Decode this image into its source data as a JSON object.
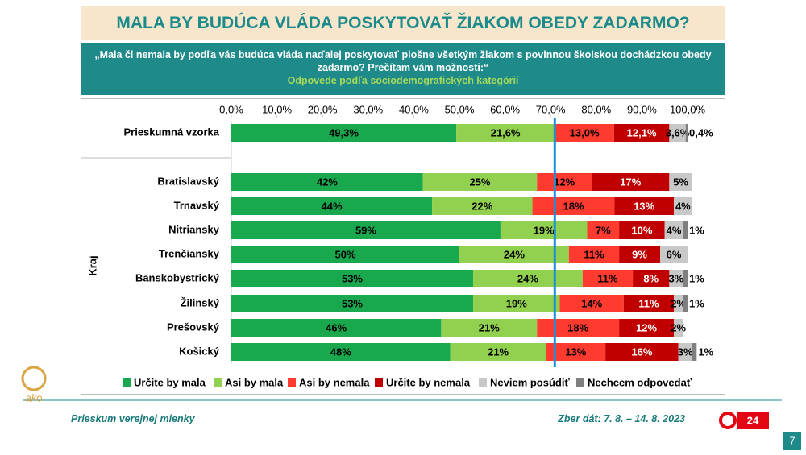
{
  "header": {
    "title": "MALA BY BUDÚCA VLÁDA POSKYTOVAŤ ŽIAKOM OBEDY ZADARMO?",
    "question": "„Mala či nemala by podľa vás budúca vláda naďalej poskytovať plošne všetkým žiakom s povinnou školskou dochádzkou obedy zadarmo? Prečítam vám možnosti:“",
    "subtitle": "Odpovede podľa sociodemografických kategórií"
  },
  "chart_data": {
    "type": "stacked_bar_horizontal",
    "group_label": "Kraj",
    "categories": [
      "Prieskumná vzorka",
      "Bratislavský",
      "Trnavský",
      "Nitriansky",
      "Trenčiansky",
      "Banskobystrický",
      "Žilinský",
      "Prešovský",
      "Košický"
    ],
    "series": [
      {
        "name": "Určite by mala",
        "color": "#1aa84f",
        "label_color": "#000000",
        "values": [
          49.3,
          42,
          44,
          59,
          50,
          53,
          53,
          46,
          48
        ],
        "value_labels": [
          "49,3%",
          "42%",
          "44%",
          "59%",
          "50%",
          "53%",
          "53%",
          "46%",
          "48%"
        ]
      },
      {
        "name": "Asi by mala",
        "color": "#92d050",
        "label_color": "#000000",
        "values": [
          21.6,
          25,
          22,
          19,
          24,
          24,
          19,
          21,
          21
        ],
        "value_labels": [
          "21,6%",
          "25%",
          "22%",
          "19%",
          "24%",
          "24%",
          "19%",
          "21%",
          "21%"
        ]
      },
      {
        "name": "Asi by nemala",
        "color": "#ff3b2f",
        "label_color": "#000000",
        "values": [
          13.0,
          12,
          18,
          7,
          11,
          11,
          14,
          18,
          13
        ],
        "value_labels": [
          "13,0%",
          "12%",
          "18%",
          "7%",
          "11%",
          "11%",
          "14%",
          "18%",
          "13%"
        ]
      },
      {
        "name": "Určite by nemala",
        "color": "#c00000",
        "label_color": "#ffffff",
        "values": [
          12.1,
          17,
          13,
          10,
          9,
          8,
          11,
          12,
          16
        ],
        "value_labels": [
          "12,1%",
          "17%",
          "13%",
          "10%",
          "9%",
          "8%",
          "11%",
          "12%",
          "16%"
        ]
      },
      {
        "name": "Neviem posúdiť",
        "color": "#c8c8c8",
        "label_color": "#000000",
        "values": [
          3.6,
          5,
          4,
          4,
          6,
          3,
          2,
          2,
          3
        ],
        "value_labels": [
          "3,6%",
          "5%",
          "4%",
          "4%",
          "6%",
          "3%",
          "2%",
          "2%",
          "3%"
        ]
      },
      {
        "name": "Nechcem odpovedať",
        "color": "#7f7f7f",
        "label_color": "#000000",
        "values": [
          0.4,
          null,
          null,
          1,
          null,
          1,
          1,
          null,
          1
        ],
        "value_labels": [
          "0,4%",
          null,
          null,
          "1%",
          null,
          "1%",
          "1%",
          null,
          "1%"
        ]
      }
    ],
    "xlim": [
      0,
      100
    ],
    "xticks": [
      {
        "value": 0,
        "label": "0,0%"
      },
      {
        "value": 10,
        "label": "10,0%"
      },
      {
        "value": 20,
        "label": "20,0%"
      },
      {
        "value": 30,
        "label": "30,0%"
      },
      {
        "value": 40,
        "label": "40,0%"
      },
      {
        "value": 50,
        "label": "50,0%"
      },
      {
        "value": 60,
        "label": "60,0%"
      },
      {
        "value": 70,
        "label": "70,0%"
      },
      {
        "value": 80,
        "label": "80,0%"
      },
      {
        "value": 90,
        "label": "90,0%"
      },
      {
        "value": 100,
        "label": "100,0%"
      }
    ],
    "reference_line": 70.9,
    "reference_color": "#1e90d6"
  },
  "footer": {
    "left": "Prieskum verejnej mienky",
    "right": "Zber dát: 7. 8. – 14. 8. 2023",
    "page": "7",
    "logo": "ako",
    "tv_logo": "24"
  }
}
